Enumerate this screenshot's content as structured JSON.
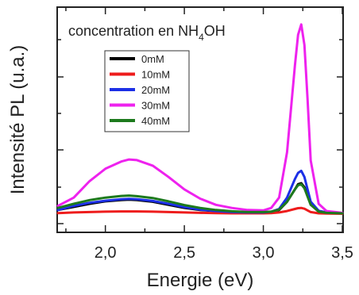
{
  "chart_data": {
    "type": "line",
    "title": "concentration en NH",
    "title_subscript": "4",
    "title_suffix": "OH",
    "xlabel": "Energie (eV)",
    "ylabel": "Intensité PL (u.a.)",
    "xlim": [
      1.7,
      3.5
    ],
    "ylim": [
      0,
      1.0
    ],
    "x_ticks": [
      2.0,
      2.5,
      3.0,
      3.5
    ],
    "x_tick_labels": [
      "2,0",
      "2,5",
      "3,0",
      "3,5"
    ],
    "y_tick_labels_shown": false,
    "grid": false,
    "legend_position": "upper-left",
    "x": [
      1.7,
      1.8,
      1.9,
      2.0,
      2.1,
      2.15,
      2.2,
      2.3,
      2.4,
      2.5,
      2.6,
      2.7,
      2.8,
      2.9,
      3.0,
      3.05,
      3.1,
      3.15,
      3.2,
      3.22,
      3.24,
      3.26,
      3.28,
      3.3,
      3.35,
      3.4,
      3.5
    ],
    "series": [
      {
        "name": "0mM",
        "color": "#000000",
        "values": [
          0.02,
          0.035,
          0.05,
          0.062,
          0.068,
          0.07,
          0.068,
          0.06,
          0.045,
          0.03,
          0.02,
          0.015,
          0.01,
          0.008,
          0.008,
          0.01,
          0.02,
          0.06,
          0.12,
          0.145,
          0.15,
          0.13,
          0.09,
          0.05,
          0.015,
          0.008,
          0.005
        ]
      },
      {
        "name": "10mM",
        "color": "#ee1c1c",
        "values": [
          0.005,
          0.008,
          0.01,
          0.012,
          0.013,
          0.013,
          0.013,
          0.012,
          0.01,
          0.008,
          0.006,
          0.005,
          0.004,
          0.004,
          0.004,
          0.005,
          0.008,
          0.015,
          0.025,
          0.029,
          0.03,
          0.026,
          0.018,
          0.01,
          0.004,
          0.003,
          0.002
        ]
      },
      {
        "name": "20mM",
        "color": "#1c2fe6",
        "values": [
          0.02,
          0.04,
          0.055,
          0.065,
          0.072,
          0.074,
          0.072,
          0.064,
          0.05,
          0.034,
          0.022,
          0.015,
          0.01,
          0.008,
          0.008,
          0.012,
          0.025,
          0.08,
          0.17,
          0.2,
          0.21,
          0.18,
          0.12,
          0.06,
          0.016,
          0.008,
          0.005
        ]
      },
      {
        "name": "30mM",
        "color": "#ee22ee",
        "values": [
          0.04,
          0.08,
          0.16,
          0.22,
          0.255,
          0.265,
          0.262,
          0.235,
          0.18,
          0.12,
          0.075,
          0.045,
          0.03,
          0.02,
          0.018,
          0.03,
          0.08,
          0.3,
          0.72,
          0.87,
          0.92,
          0.82,
          0.56,
          0.26,
          0.05,
          0.015,
          0.006
        ]
      },
      {
        "name": "40mM",
        "color": "#1d7a1d",
        "values": [
          0.03,
          0.05,
          0.068,
          0.08,
          0.088,
          0.09,
          0.087,
          0.078,
          0.062,
          0.044,
          0.03,
          0.02,
          0.014,
          0.01,
          0.01,
          0.012,
          0.022,
          0.06,
          0.12,
          0.14,
          0.145,
          0.125,
          0.085,
          0.045,
          0.012,
          0.006,
          0.004
        ]
      }
    ]
  }
}
